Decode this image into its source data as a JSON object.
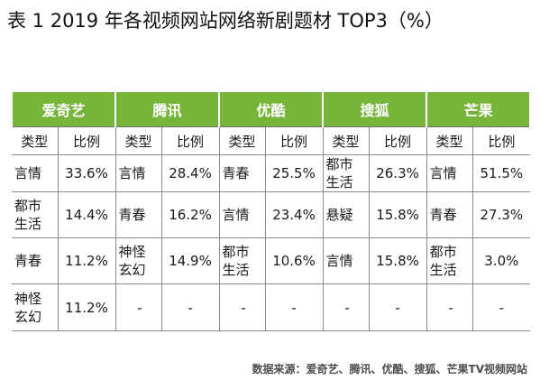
{
  "title": "表 1 2019 年各视频网站网络新剧题材 TOP3（%）",
  "columns": [
    "爱奇艺",
    "腾讯",
    "优酷",
    "搜狐",
    "芒果"
  ],
  "subheaders": {
    "type": "类型",
    "ratio": "比例"
  },
  "rows": [
    [
      [
        "言情",
        "33.6%"
      ],
      [
        "言情",
        "28.4%"
      ],
      [
        "青春",
        "25.5%"
      ],
      [
        "都市\n生活",
        "26.3%"
      ],
      [
        "言情",
        "51.5%"
      ]
    ],
    [
      [
        "都市\n生活",
        "14.4%"
      ],
      [
        "青春",
        "16.2%"
      ],
      [
        "言情",
        "23.4%"
      ],
      [
        "悬疑",
        "15.8%"
      ],
      [
        "青春",
        "27.3%"
      ]
    ],
    [
      [
        "青春",
        "11.2%"
      ],
      [
        "神怪\n玄幻",
        "14.9%"
      ],
      [
        "都市\n生活",
        "10.6%"
      ],
      [
        "言情",
        "15.8%"
      ],
      [
        "都市\n生活",
        "3.0%"
      ]
    ],
    [
      [
        "神怪\n玄幻",
        "11.2%"
      ],
      [
        "-",
        "-"
      ],
      [
        "-",
        "-"
      ],
      [
        "-",
        "-"
      ],
      [
        "-",
        "-"
      ]
    ]
  ],
  "source": "数据来源：爱奇艺、腾讯、优酷、搜狐、芒果TV视频网站",
  "colors": {
    "header_green": "#77b53a",
    "header_text": "#ffffff",
    "grid": "#8a8a8a"
  }
}
